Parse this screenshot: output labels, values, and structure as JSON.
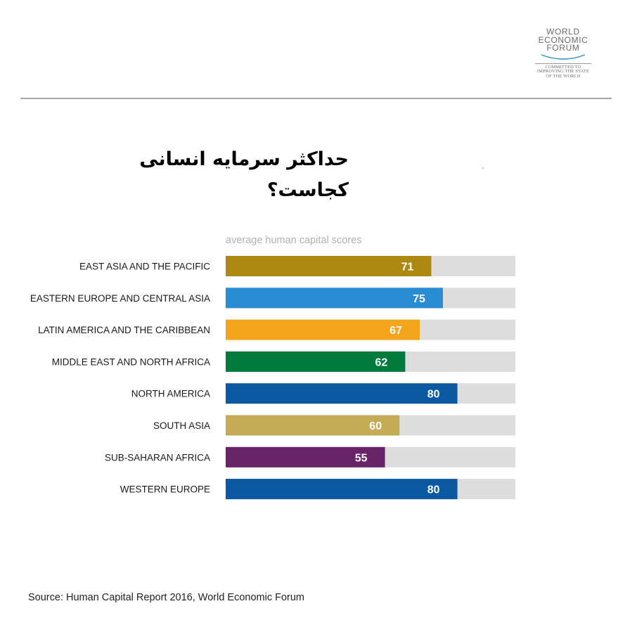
{
  "logo": {
    "lines": [
      "WORLD",
      "ECONOMIC",
      "FORUM"
    ],
    "tagline": [
      "COMMITTED TO",
      "IMPROVING THE STATE",
      "OF THE WORLD"
    ]
  },
  "title": "حداکثر سرمایه انسانی کجاست؟",
  "source": "Source: Human Capital Report 2016, World Economic Forum",
  "chart_data": {
    "type": "bar",
    "orientation": "horizontal",
    "subtitle": "average human capital scores",
    "categories": [
      "EAST ASIA AND THE PACIFIC",
      "EASTERN EUROPE AND CENTRAL ASIA",
      "LATIN AMERICA AND THE CARIBBEAN",
      "MIDDLE EAST AND NORTH AFRICA",
      "NORTH AMERICA",
      "SOUTH ASIA",
      "SUB-SAHARAN AFRICA",
      "WESTERN EUROPE"
    ],
    "values": [
      71,
      75,
      67,
      62,
      80,
      60,
      55,
      80
    ],
    "xlim": [
      0,
      100
    ],
    "colors": [
      "#AE8912",
      "#2A8DD4",
      "#F4A51C",
      "#007A3D",
      "#0B5AA1",
      "#C4AC57",
      "#672467",
      "#0B5AA1"
    ],
    "track_color": "#DDDDDD",
    "grid": false,
    "legend": "none"
  }
}
